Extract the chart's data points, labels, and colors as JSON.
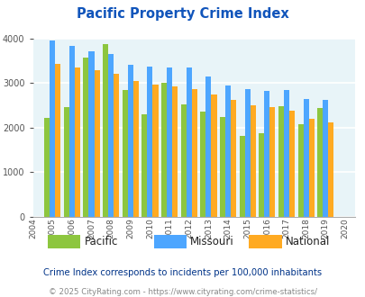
{
  "title": "Pacific Property Crime Index",
  "years": [
    2004,
    2005,
    2006,
    2007,
    2008,
    2009,
    2010,
    2011,
    2012,
    2013,
    2014,
    2015,
    2016,
    2017,
    2018,
    2019,
    2020
  ],
  "pacific": [
    null,
    2230,
    2460,
    3580,
    3880,
    2840,
    2300,
    3000,
    2530,
    2360,
    2240,
    1820,
    1870,
    2490,
    2080,
    2440,
    null
  ],
  "missouri": [
    null,
    3960,
    3840,
    3720,
    3650,
    3410,
    3380,
    3360,
    3360,
    3150,
    2950,
    2870,
    2820,
    2840,
    2650,
    2620,
    null
  ],
  "national": [
    null,
    3430,
    3350,
    3290,
    3210,
    3050,
    2960,
    2920,
    2870,
    2740,
    2620,
    2510,
    2460,
    2390,
    2210,
    2110,
    null
  ],
  "colors": {
    "pacific": "#8DC63F",
    "missouri": "#4DA6FF",
    "national": "#FFAA22"
  },
  "ylim": [
    0,
    4000
  ],
  "yticks": [
    0,
    1000,
    2000,
    3000,
    4000
  ],
  "bg_color": "#E8F4F8",
  "grid_color": "#ffffff",
  "subtitle": "Crime Index corresponds to incidents per 100,000 inhabitants",
  "footer": "© 2025 CityRating.com - https://www.cityrating.com/crime-statistics/",
  "title_color": "#1155BB",
  "subtitle_color": "#003388",
  "footer_color": "#888888",
  "legend_labels": [
    "Pacific",
    "Missouri",
    "National"
  ]
}
